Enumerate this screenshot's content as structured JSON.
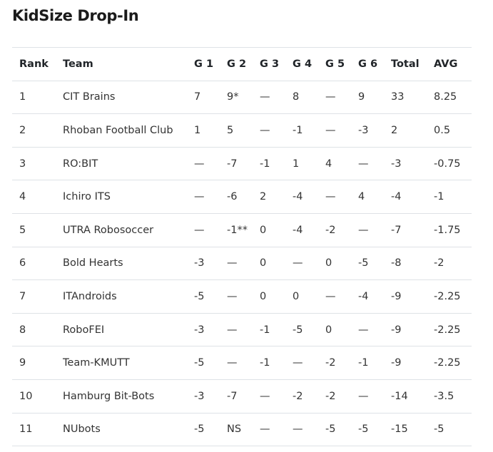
{
  "page": {
    "title": "KidSize Drop-In"
  },
  "table": {
    "headers": [
      "Rank",
      "Team",
      "G 1",
      "G 2",
      "G 3",
      "G 4",
      "G 5",
      "G 6",
      "Total",
      "AVG"
    ],
    "rows": [
      [
        "1",
        "CIT Brains",
        "7",
        "9*",
        "—",
        "8",
        "—",
        "9",
        "33",
        "8.25"
      ],
      [
        "2",
        "Rhoban Football Club",
        "1",
        "5",
        "—",
        "-1",
        "—",
        "-3",
        "2",
        "0.5"
      ],
      [
        "3",
        "RO:BIT",
        "—",
        "-7",
        "-1",
        "1",
        "4",
        "—",
        "-3",
        "-0.75"
      ],
      [
        "4",
        "Ichiro ITS",
        "—",
        "-6",
        "2",
        "-4",
        "—",
        "4",
        "-4",
        "-1"
      ],
      [
        "5",
        "UTRA Robosoccer",
        "—",
        "-1**",
        "0",
        "-4",
        "-2",
        "—",
        "-7",
        "-1.75"
      ],
      [
        "6",
        "Bold Hearts",
        "-3",
        "—",
        "0",
        "—",
        "0",
        "-5",
        "-8",
        "-2"
      ],
      [
        "7",
        "ITAndroids",
        "-5",
        "—",
        "0",
        "0",
        "—",
        "-4",
        "-9",
        "-2.25"
      ],
      [
        "8",
        "RoboFEI",
        "-3",
        "—",
        "-1",
        "-5",
        "0",
        "—",
        "-9",
        "-2.25"
      ],
      [
        "9",
        "Team-KMUTT",
        "-5",
        "—",
        "-1",
        "—",
        "-2",
        "-1",
        "-9",
        "-2.25"
      ],
      [
        "10",
        "Hamburg Bit-Bots",
        "-3",
        "-7",
        "—",
        "-2",
        "-2",
        "—",
        "-14",
        "-3.5"
      ],
      [
        "11",
        "NUbots",
        "-5",
        "NS",
        "—",
        "—",
        "-5",
        "-5",
        "-15",
        "-5"
      ]
    ]
  }
}
